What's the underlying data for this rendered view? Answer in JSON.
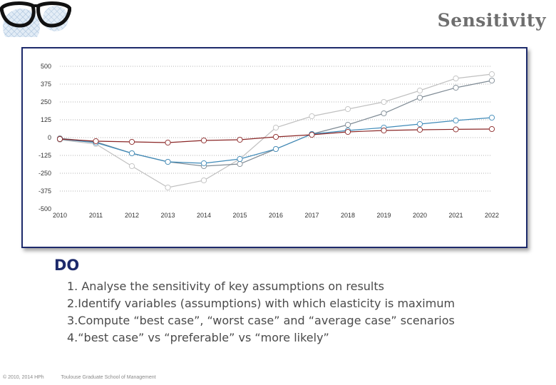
{
  "slide": {
    "title": "Sensitivity"
  },
  "do_section": {
    "heading": "DO",
    "items": [
      "1. Analyse the sensitivity of key assumptions on results",
      "2.Identify variables (assumptions)  with which elasticity is maximum",
      "3.Compute “best case”, “worst case” and “average case” scenarios",
      "4.“best case” vs “preferable” vs “more likely”"
    ]
  },
  "footer": {
    "copyright": "© 2010, 2014 HPh",
    "school": "Toulouse Graduate School of Management"
  },
  "chart_data": {
    "type": "line",
    "categories": [
      "2010",
      "2011",
      "2012",
      "2013",
      "2014",
      "2015",
      "2016",
      "2017",
      "2018",
      "2019",
      "2020",
      "2021",
      "2022"
    ],
    "ylim": [
      -500,
      500
    ],
    "yticks": [
      500,
      375,
      250,
      125,
      0,
      -125,
      -250,
      -375,
      -500
    ],
    "grid": true,
    "legend": "none",
    "series": [
      {
        "color": "#c0c0c0",
        "values": [
          -15,
          -45,
          -200,
          -350,
          -300,
          -150,
          70,
          150,
          200,
          250,
          330,
          415,
          445
        ]
      },
      {
        "color": "#7e8a94",
        "values": [
          -5,
          -30,
          -110,
          -170,
          -200,
          -185,
          -80,
          25,
          90,
          170,
          280,
          350,
          400
        ]
      },
      {
        "color": "#3f8ab8",
        "values": [
          -10,
          -35,
          -110,
          -170,
          -180,
          -150,
          -80,
          25,
          50,
          70,
          95,
          120,
          140
        ]
      },
      {
        "color": "#8a2626",
        "values": [
          -10,
          -25,
          -30,
          -35,
          -20,
          -15,
          5,
          20,
          40,
          50,
          55,
          58,
          60
        ]
      }
    ]
  }
}
